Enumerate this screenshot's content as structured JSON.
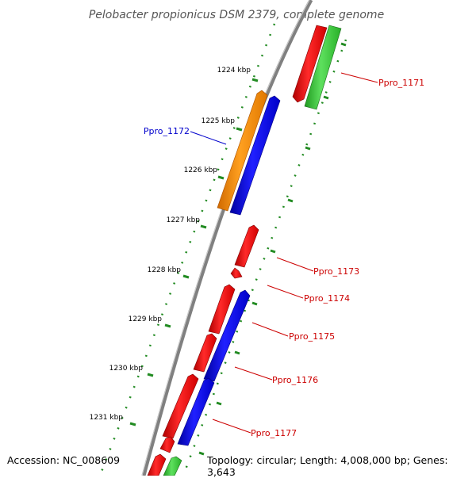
{
  "title": "Pelobacter propionicus DSM 2379, complete genome",
  "accession": "Accession: NC_008609",
  "summary": "Topology: circular; Length: 4,008,000 bp; Genes: 3,643",
  "kbp_ticks": [
    "1224 kbp",
    "1225 kbp",
    "1226 kbp",
    "1227 kbp",
    "1228 kbp",
    "1229 kbp",
    "1230 kbp",
    "1231 kbp"
  ],
  "gene_labels": {
    "forward": [
      "Ppro_1172"
    ],
    "reverse": [
      "Ppro_1171",
      "Ppro_1173",
      "Ppro_1174",
      "Ppro_1175",
      "Ppro_1176",
      "Ppro_1177"
    ]
  },
  "colors": {
    "forward_label": "#0000cc",
    "reverse_label": "#cc0000",
    "gene_red": "#ff0000",
    "gene_blue": "#0000ff",
    "gene_green": "#33cc33",
    "gene_orange": "#ff8c00",
    "scale_green": "#228b22",
    "backbone": "#808080"
  }
}
